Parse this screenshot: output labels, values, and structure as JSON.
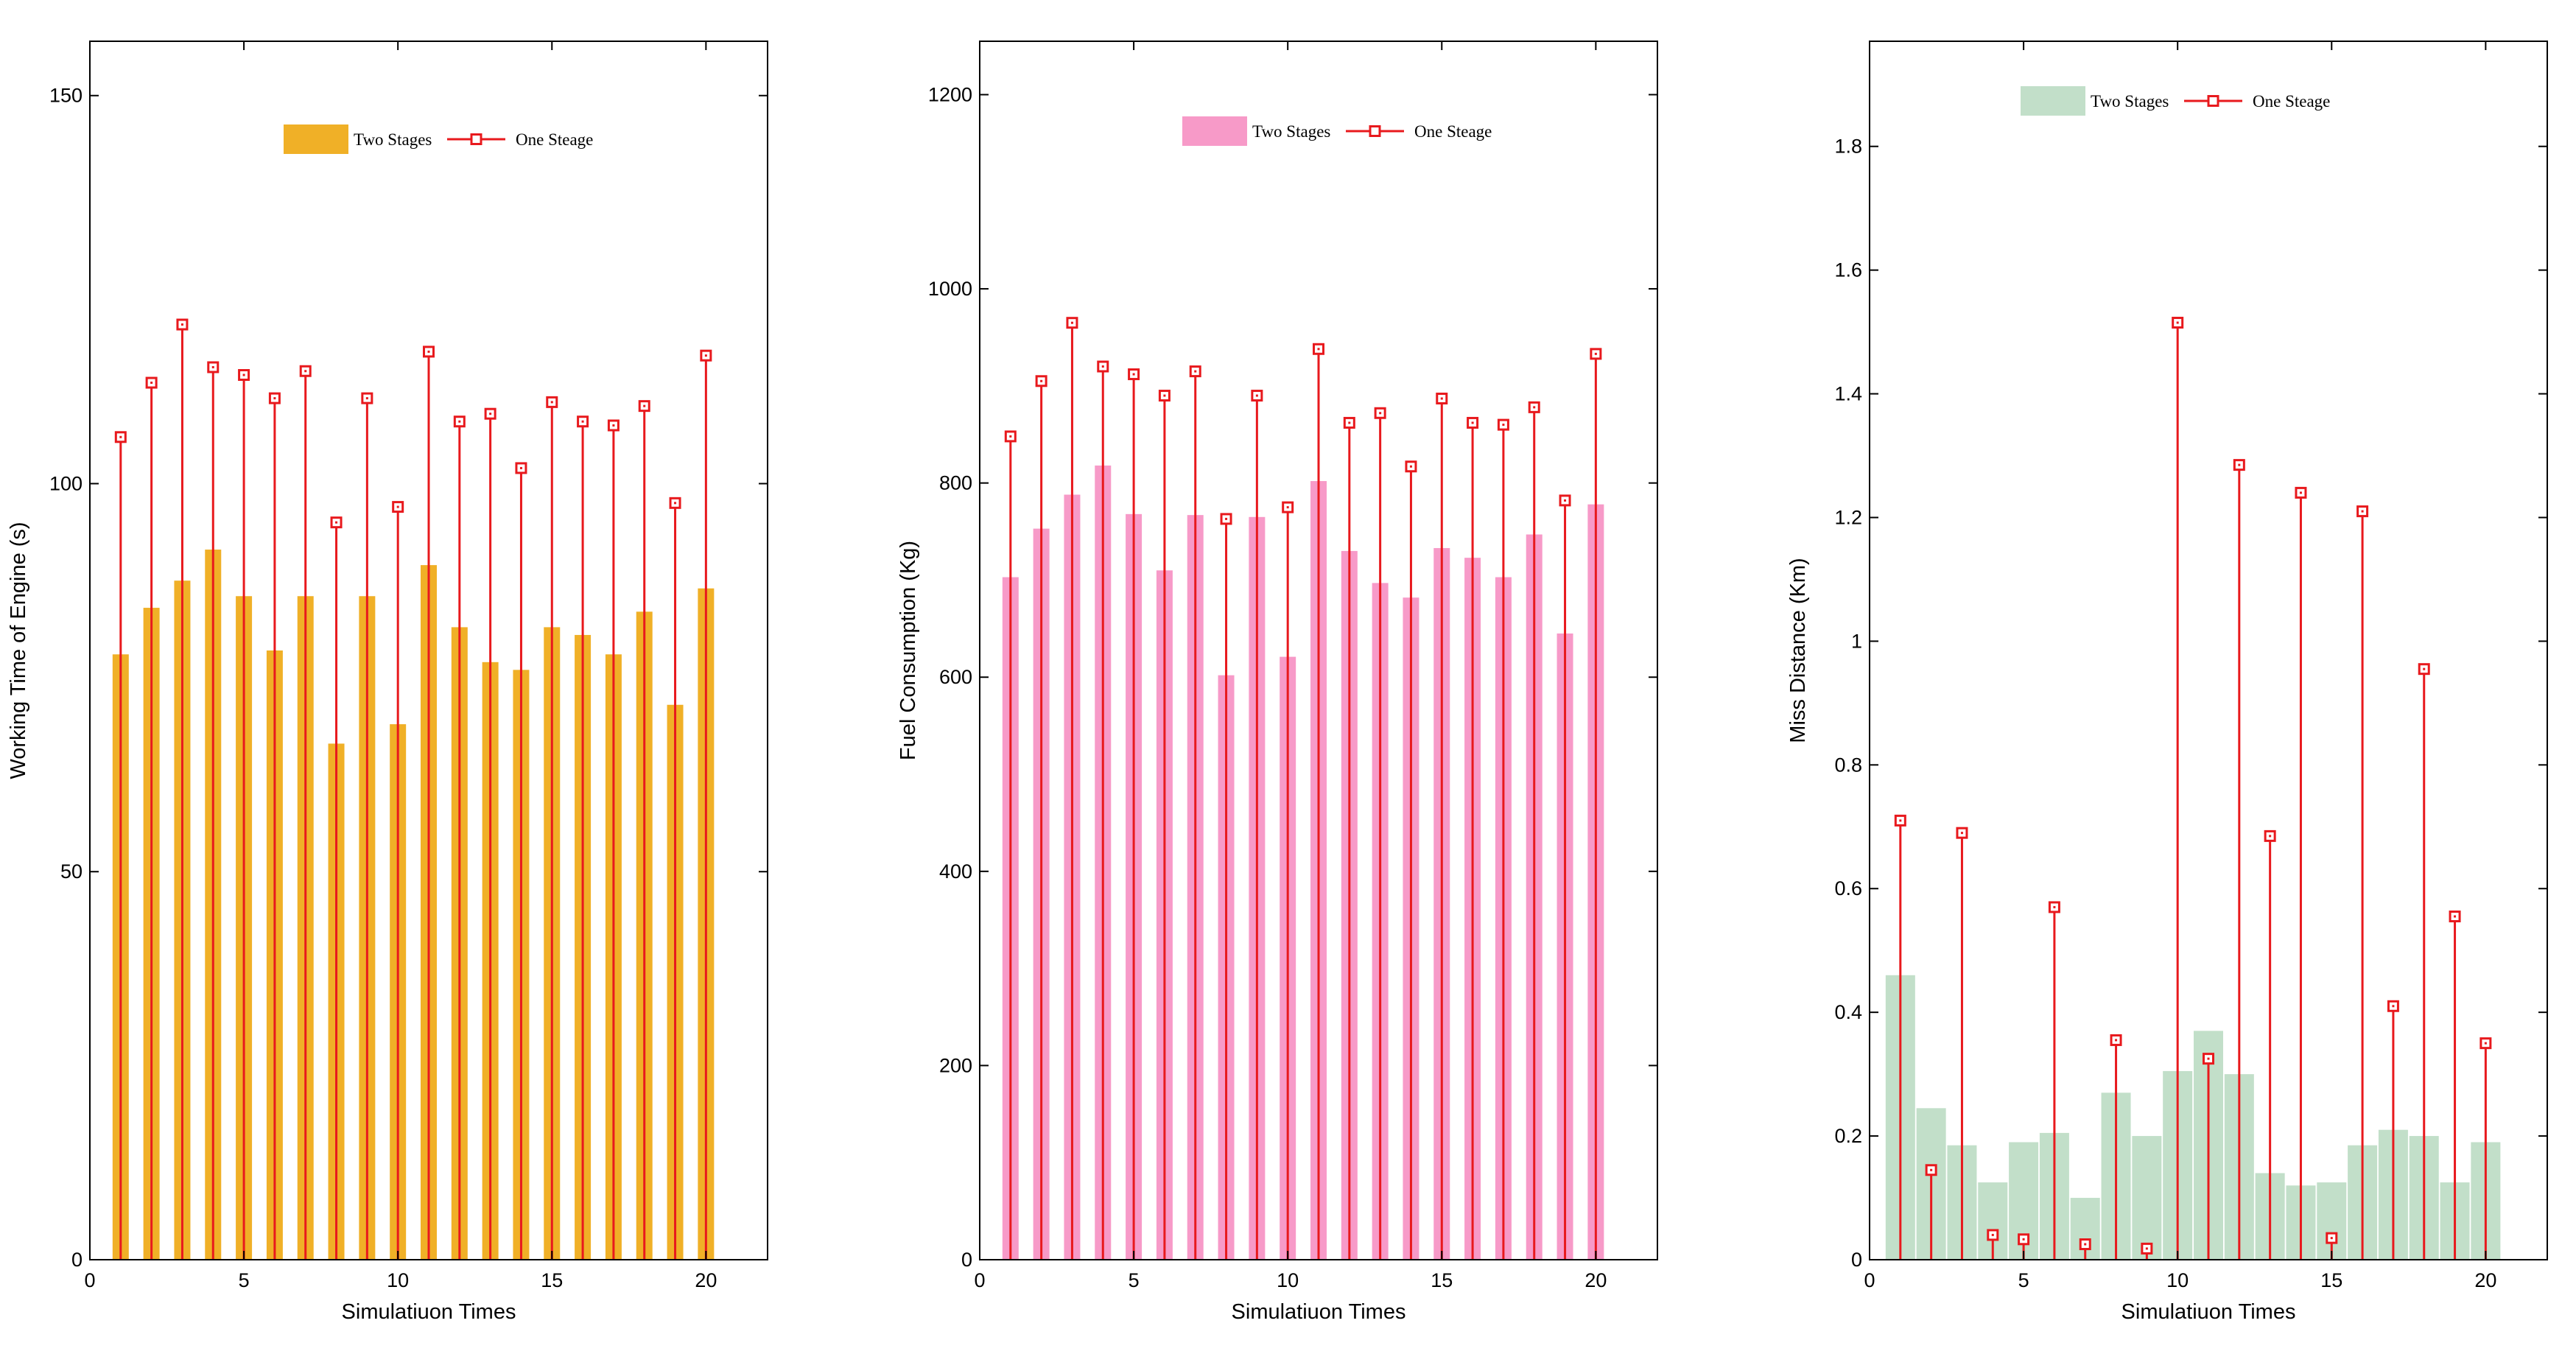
{
  "chart_data": [
    {
      "type": "bar",
      "xlabel": "Simulatiuon Times",
      "ylabel": "Working Time of Engine (s)",
      "xlim": [
        0,
        22
      ],
      "ylim": [
        0,
        157
      ],
      "xticks": [
        0,
        5,
        10,
        15,
        20
      ],
      "yticks": [
        0,
        50,
        100,
        150
      ],
      "legend_position": "top-center",
      "categories": [
        1,
        2,
        3,
        4,
        5,
        6,
        7,
        8,
        9,
        10,
        11,
        12,
        13,
        14,
        15,
        16,
        17,
        18,
        19,
        20
      ],
      "series": [
        {
          "name": "Two Stages",
          "kind": "bar",
          "color": "#F0B027",
          "values": [
            78,
            84,
            87.5,
            91.5,
            85.5,
            78.5,
            85.5,
            66.5,
            85.5,
            69,
            89.5,
            81.5,
            77,
            76,
            81.5,
            80.5,
            78,
            83.5,
            71.5,
            86.5
          ]
        },
        {
          "name": "One Steage",
          "kind": "stem",
          "color": "#E8191D",
          "values": [
            106,
            113,
            120.5,
            115,
            114,
            111,
            114.5,
            95,
            111,
            97,
            117,
            108,
            109,
            102,
            110.5,
            108,
            107.5,
            110,
            97.5,
            116.5
          ]
        }
      ]
    },
    {
      "type": "bar",
      "xlabel": "Simulatiuon Times",
      "ylabel": "Fuel Consumption (Kg)",
      "xlim": [
        0,
        22
      ],
      "ylim": [
        0,
        1255
      ],
      "xticks": [
        0,
        5,
        10,
        15,
        20
      ],
      "yticks": [
        0,
        200,
        400,
        600,
        800,
        1000,
        1200
      ],
      "legend_position": "top-center",
      "categories": [
        1,
        2,
        3,
        4,
        5,
        6,
        7,
        8,
        9,
        10,
        11,
        12,
        13,
        14,
        15,
        16,
        17,
        18,
        19,
        20
      ],
      "series": [
        {
          "name": "Two  Stages",
          "kind": "bar",
          "color": "#F79AC8",
          "values": [
            703,
            753,
            788,
            818,
            768,
            710,
            767,
            602,
            765,
            621,
            802,
            730,
            697,
            682,
            733,
            723,
            703,
            747,
            645,
            778
          ]
        },
        {
          "name": "One Steage",
          "kind": "stem",
          "color": "#E8191D",
          "values": [
            848,
            905,
            965,
            920,
            912,
            890,
            915,
            763,
            890,
            775,
            938,
            862,
            872,
            817,
            887,
            862,
            860,
            878,
            782,
            933
          ]
        }
      ]
    },
    {
      "type": "bar",
      "xlabel": "Simulatiuon Times",
      "ylabel": "Miss Distance (Km)",
      "xlim": [
        0,
        22
      ],
      "ylim": [
        0,
        1.97
      ],
      "xticks": [
        0,
        5,
        10,
        15,
        20
      ],
      "yticks": [
        "0",
        "0.2",
        "0.4",
        "0.6",
        "0.8",
        "1",
        "1.2",
        "1.4",
        "1.6",
        "1.8"
      ],
      "legend_position": "top-center",
      "categories": [
        1,
        2,
        3,
        4,
        5,
        6,
        7,
        8,
        9,
        10,
        11,
        12,
        13,
        14,
        15,
        16,
        17,
        18,
        19,
        20
      ],
      "series": [
        {
          "name": "Two Stages",
          "kind": "bar",
          "color": "#C2DFC9",
          "values": [
            0.46,
            0.245,
            0.185,
            0.125,
            0.19,
            0.205,
            0.1,
            0.27,
            0.2,
            0.305,
            0.37,
            0.3,
            0.14,
            0.12,
            0.125,
            0.185,
            0.21,
            0.2,
            0.125,
            0.19
          ]
        },
        {
          "name": "One Steage",
          "kind": "stem",
          "color": "#E8191D",
          "values": [
            0.71,
            0.145,
            0.69,
            0.04,
            0.033,
            0.57,
            0.025,
            0.355,
            0.018,
            1.515,
            0.325,
            1.285,
            0.685,
            1.24,
            0.035,
            1.21,
            0.41,
            0.955,
            0.555,
            0.35
          ]
        }
      ]
    }
  ]
}
